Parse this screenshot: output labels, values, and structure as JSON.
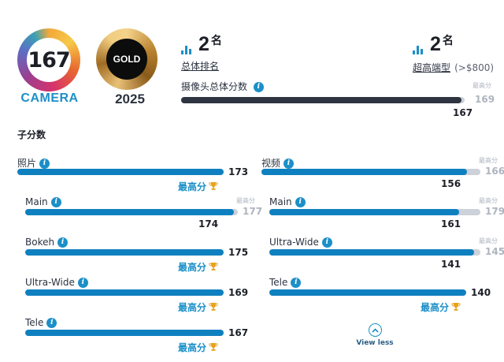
{
  "badge": {
    "camera_score": "167",
    "camera_label": "CAMERA",
    "gold_label": "GOLD",
    "year": "2025"
  },
  "ranking": {
    "global_rank": "2",
    "global_unit": "名",
    "global_label": "总体排名",
    "segment_rank": "2",
    "segment_unit": "名",
    "segment_label": "超高端型",
    "segment_price": "(>$800)"
  },
  "total": {
    "label": "摄像头总体分数",
    "best_label": "最高分",
    "best": "169",
    "value": "167",
    "fraction": 0.988
  },
  "subscores_title": "子分数",
  "best_tag": "最高分",
  "max_label": "最高分",
  "left": [
    {
      "label": "照片",
      "value": "173",
      "best": "",
      "fraction": 1.0,
      "top": true,
      "indent": false
    },
    {
      "label": "Main",
      "value": "174",
      "best": "177",
      "fraction": 0.983,
      "top": false,
      "indent": true
    },
    {
      "label": "Bokeh",
      "value": "175",
      "best": "",
      "fraction": 1.0,
      "top": true,
      "indent": true
    },
    {
      "label": "Ultra-Wide",
      "value": "169",
      "best": "",
      "fraction": 1.0,
      "top": true,
      "indent": true
    },
    {
      "label": "Tele",
      "value": "167",
      "best": "",
      "fraction": 1.0,
      "top": true,
      "indent": true
    }
  ],
  "right": [
    {
      "label": "视频",
      "value": "156",
      "best": "166",
      "fraction": 0.94,
      "top": false,
      "indent": false
    },
    {
      "label": "Main",
      "value": "161",
      "best": "179",
      "fraction": 0.899,
      "top": false,
      "indent": true
    },
    {
      "label": "Ultra-Wide",
      "value": "141",
      "best": "145",
      "fraction": 0.972,
      "top": false,
      "indent": true
    },
    {
      "label": "Tele",
      "value": "140",
      "best": "",
      "fraction": 1.0,
      "top": true,
      "indent": true
    }
  ],
  "view_less": "View less",
  "colors": {
    "accent": "#1b8fc8",
    "bar_blue": "#0f80bf",
    "bar_dark": "#2f3441",
    "track": "#cdd1d9",
    "trophy": "#e8a21c"
  }
}
